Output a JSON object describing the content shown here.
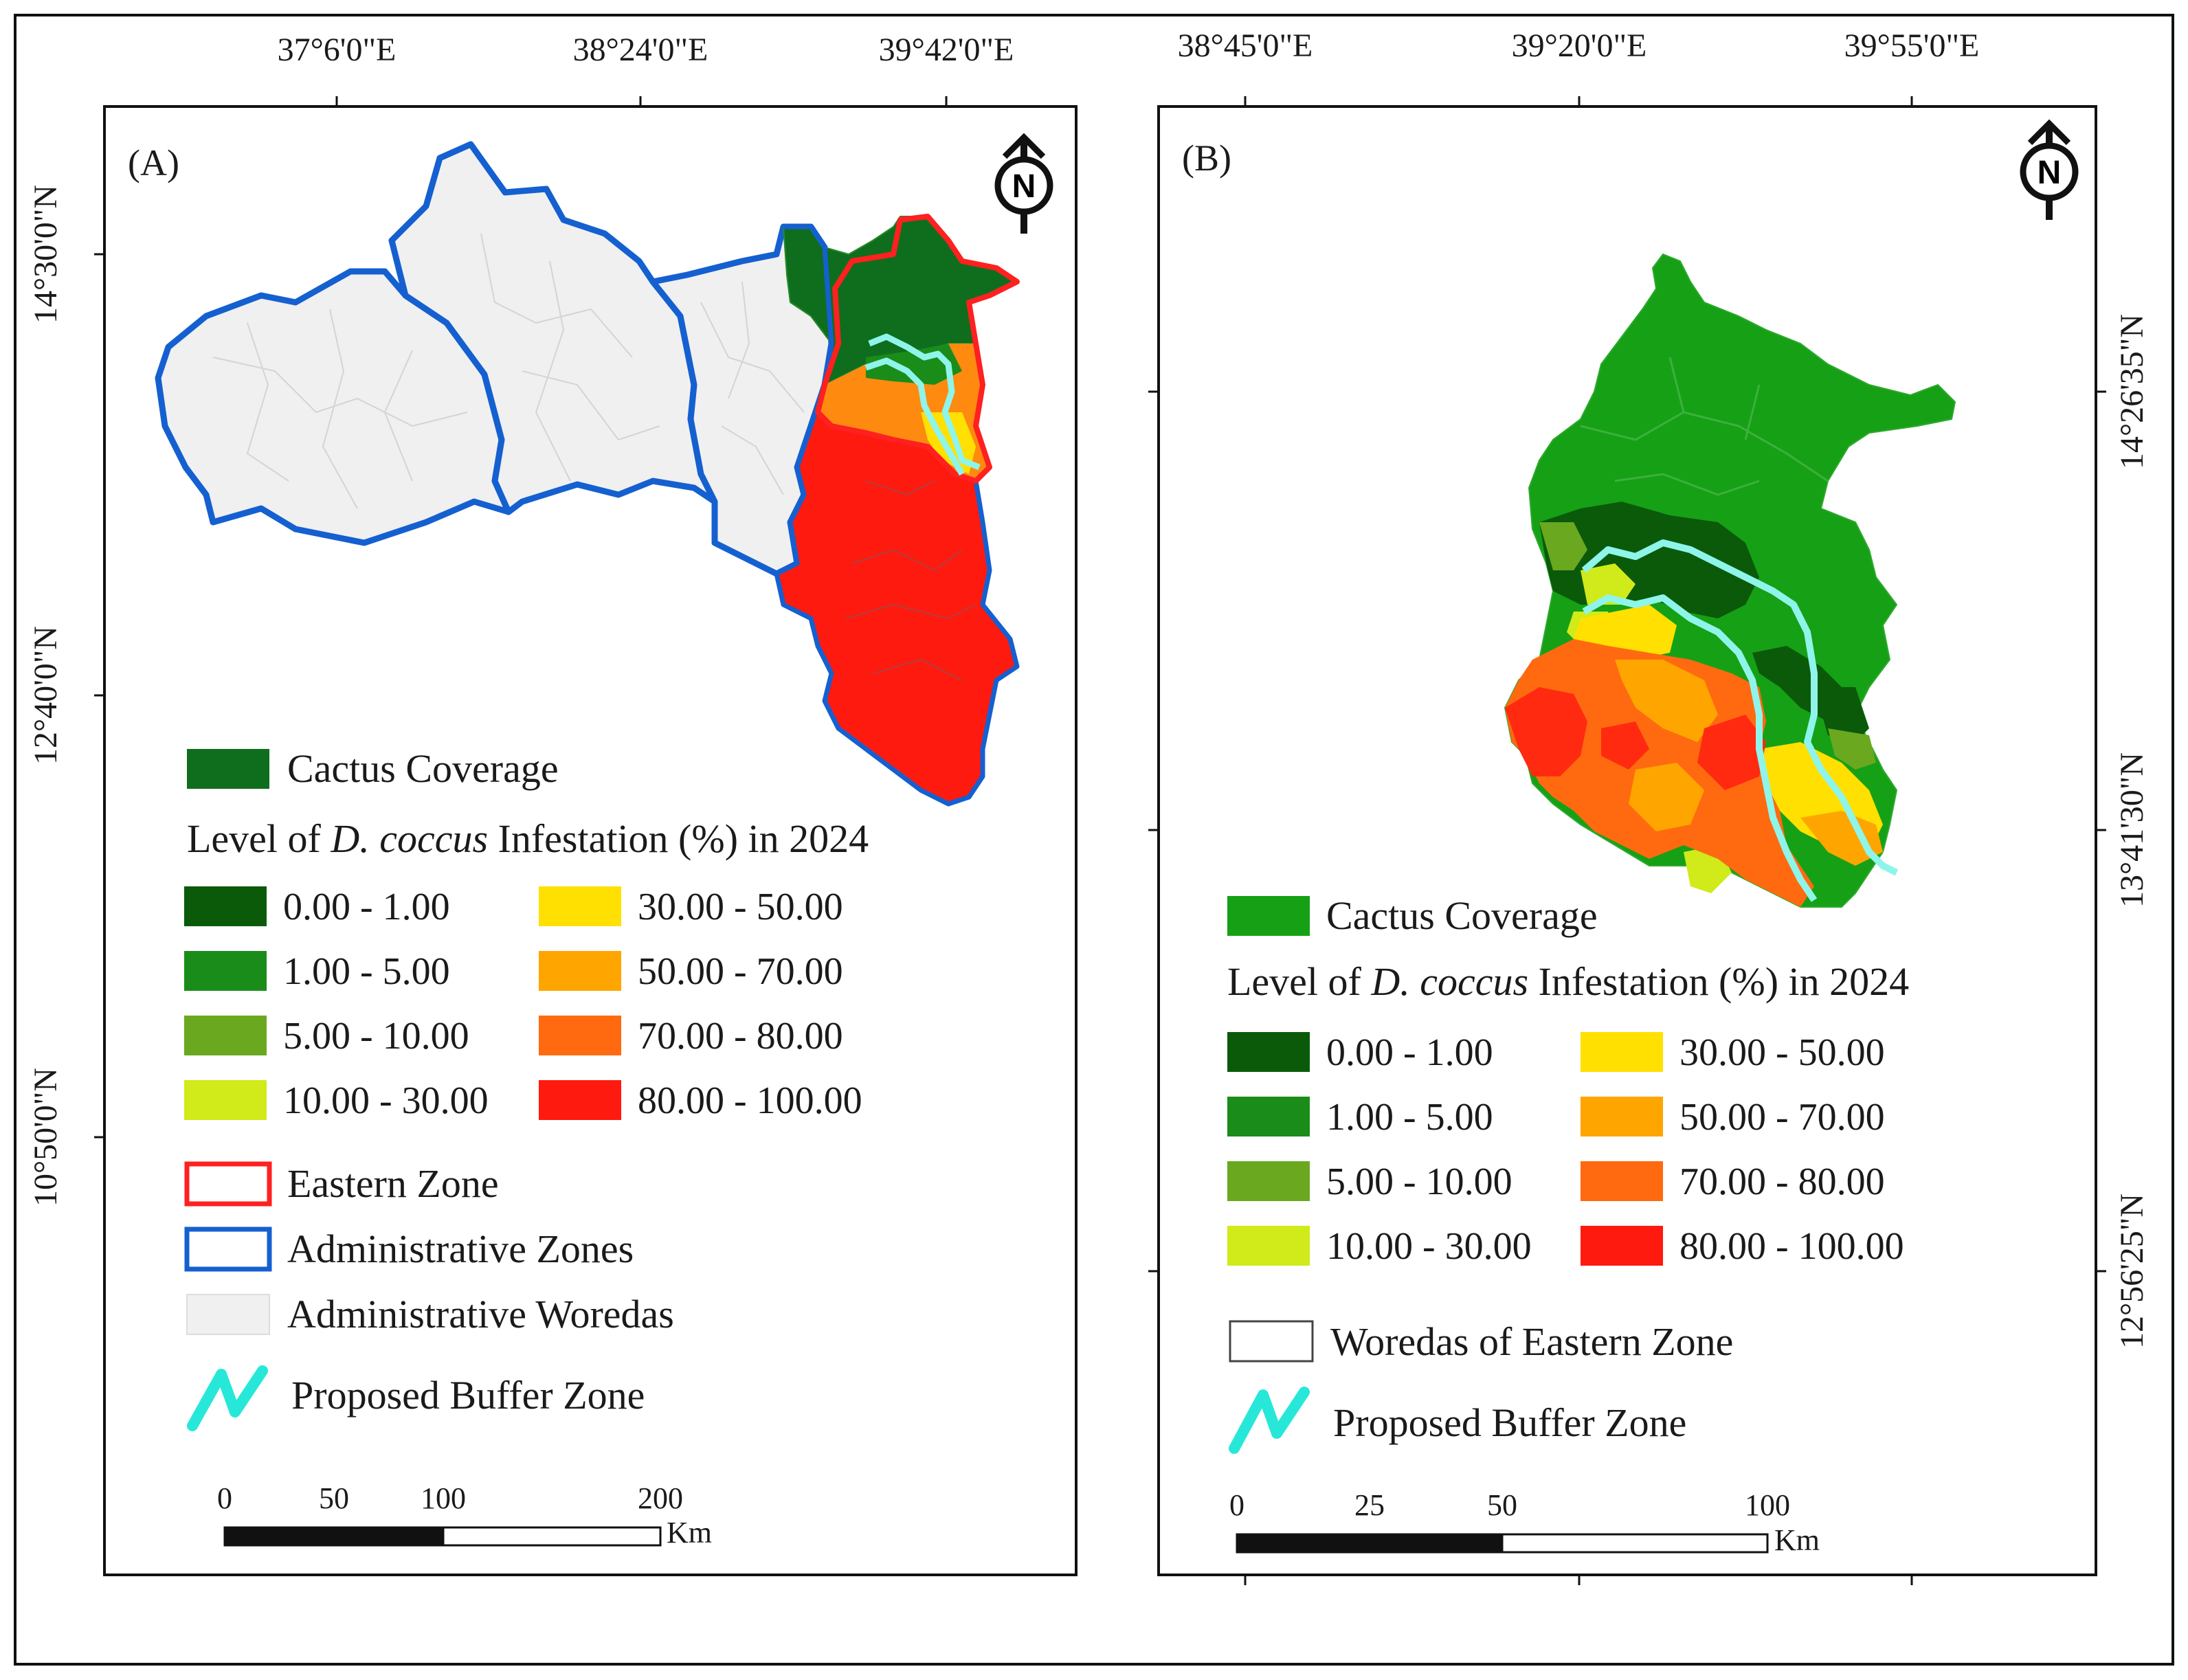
{
  "panels": [
    {
      "id": "A",
      "label": "(A)",
      "top_ticks": [
        "37°6'0\"E",
        "38°24'0\"E",
        "39°42'0\"E"
      ],
      "left_ticks": [
        "14°30'0\"N",
        "12°40'0\"N",
        "10°50'0\"N"
      ],
      "legend": {
        "cactus_label": "Cactus Coverage",
        "title_prefix": "Level of ",
        "title_italic": "D. coccus",
        "title_suffix": " Infestation (%) in 2024",
        "classes": [
          {
            "label": "0.00 - 1.00",
            "color": "#0a5a0a"
          },
          {
            "label": "1.00 - 5.00",
            "color": "#1a8c1a"
          },
          {
            "label": "5.00 - 10.00",
            "color": "#6aa820"
          },
          {
            "label": "10.00 - 30.00",
            "color": "#d0ea1a"
          },
          {
            "label": "30.00 - 50.00",
            "color": "#ffe000"
          },
          {
            "label": "50.00 - 70.00",
            "color": "#ffa500"
          },
          {
            "label": "70.00 - 80.00",
            "color": "#ff6a10"
          },
          {
            "label": "80.00 - 100.00",
            "color": "#ff1a10"
          }
        ],
        "extra": [
          {
            "label": "Eastern Zone",
            "kind": "red-outline"
          },
          {
            "label": "Administrative Zones",
            "kind": "blue-outline"
          },
          {
            "label": "Administrative Woredas",
            "kind": "grey-fill"
          }
        ],
        "buffer_label": "Proposed Buffer Zone"
      },
      "scale": {
        "ticks": [
          "0",
          "50",
          "100",
          "200"
        ],
        "unit": "Km"
      }
    },
    {
      "id": "B",
      "label": "(B)",
      "top_ticks": [
        "38°45'0\"E",
        "39°20'0\"E",
        "39°55'0\"E"
      ],
      "right_ticks": [
        "14°26'35\"N",
        "13°41'30\"N",
        "12°56'25\"N"
      ],
      "legend": {
        "cactus_label": "Cactus Coverage",
        "title_prefix": "Level of ",
        "title_italic": "D. coccus",
        "title_suffix": " Infestation (%) in 2024",
        "classes": [
          {
            "label": "0.00 - 1.00",
            "color": "#0a5a0a"
          },
          {
            "label": "1.00 - 5.00",
            "color": "#1a8c1a"
          },
          {
            "label": "5.00 - 10.00",
            "color": "#6aa820"
          },
          {
            "label": "10.00 - 30.00",
            "color": "#d0ea1a"
          },
          {
            "label": "30.00 - 50.00",
            "color": "#ffe000"
          },
          {
            "label": "50.00 - 70.00",
            "color": "#ffa500"
          },
          {
            "label": "70.00 - 80.00",
            "color": "#ff6a10"
          },
          {
            "label": "80.00 - 100.00",
            "color": "#ff1a10"
          }
        ],
        "extra": [
          {
            "label": "Woredas of Eastern Zone",
            "kind": "white-outline"
          }
        ],
        "buffer_label": "Proposed Buffer Zone"
      },
      "scale": {
        "ticks": [
          "0",
          "25",
          "50",
          "100"
        ],
        "unit": "Km"
      }
    }
  ],
  "north_arrow_letter": "N",
  "colors": {
    "cactus_A": "#0e6e1e",
    "cactus_B": "#16a016",
    "eastern_zone_outline": "#ff2020",
    "admin_zone_outline": "#1560d0",
    "woreda_fill": "#f0f0f0",
    "buffer_zone": "#8ff5ea"
  }
}
